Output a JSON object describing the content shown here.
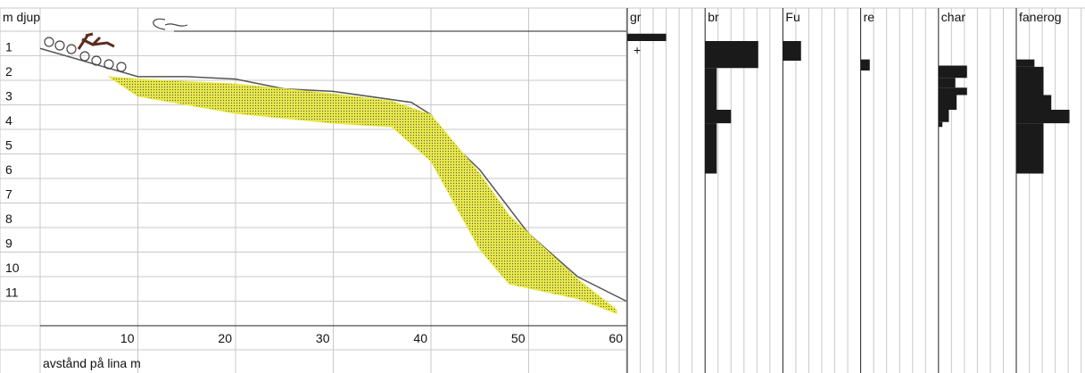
{
  "chart_data": [
    {
      "type": "profile",
      "y_label": "m djup",
      "x_label": "avstånd på lina m",
      "xlim": [
        0,
        60
      ],
      "ylim": [
        12,
        0
      ],
      "xticks": [
        10,
        20,
        30,
        40,
        50,
        60
      ],
      "yticks": [
        1,
        2,
        3,
        4,
        5,
        6,
        7,
        8,
        9,
        10,
        11
      ],
      "grid": true,
      "series": [
        {
          "kind": "line",
          "color": "#555555",
          "x": [
            0,
            10,
            15,
            20,
            25,
            30,
            38,
            40,
            42,
            45,
            50,
            55,
            60
          ],
          "values": [
            0.7,
            1.85,
            1.85,
            1.95,
            2.35,
            2.45,
            2.9,
            3.4,
            4.5,
            5.65,
            8.25,
            10.0,
            11.0
          ]
        },
        {
          "kind": "band",
          "color": "#e8e84a",
          "x": [
            7,
            10,
            20,
            30,
            36,
            40,
            45,
            48,
            55,
            59
          ],
          "top": [
            1.85,
            1.95,
            2.15,
            2.55,
            2.85,
            3.4,
            5.8,
            7.5,
            10.1,
            11.35
          ],
          "bottom": [
            1.85,
            2.65,
            3.35,
            3.75,
            3.9,
            5.3,
            8.9,
            10.3,
            10.9,
            11.5
          ]
        }
      ]
    },
    {
      "type": "cover",
      "xlim": [
        0,
        6
      ],
      "ylim": [
        12,
        0
      ],
      "annotation": "+",
      "series": [
        {
          "name": "gr",
          "color": "#1a1a1a",
          "depths": [
            0.1,
            0.4
          ],
          "values": [
            3
          ]
        },
        {
          "name": "br",
          "color": "#1a1a1a",
          "depths": [
            0.4,
            1.5,
            3.2,
            3.75,
            5.8
          ],
          "values": [
            4.1,
            0.9,
            2,
            0.9
          ]
        },
        {
          "name": "Fu",
          "color": "#1a1a1a",
          "depths": [
            0.4,
            1.2
          ],
          "values": [
            1.4
          ]
        },
        {
          "name": "re",
          "color": "#1a1a1a",
          "depths": [
            1.15,
            1.6
          ],
          "values": [
            0.7
          ]
        },
        {
          "name": "char",
          "color": "#1a1a1a",
          "depths": [
            1.4,
            1.9,
            2.3,
            2.6,
            3.2,
            3.7,
            3.9
          ],
          "values": [
            2.2,
            1.3,
            2.2,
            1.4,
            0.8,
            0.3
          ]
        },
        {
          "name": "fanerog",
          "color": "#1a1a1a",
          "depths": [
            1.15,
            1.45,
            2.6,
            3.2,
            3.75,
            5.8
          ],
          "values": [
            1.4,
            2.1,
            2.7,
            4.1,
            2.1
          ]
        }
      ]
    }
  ]
}
